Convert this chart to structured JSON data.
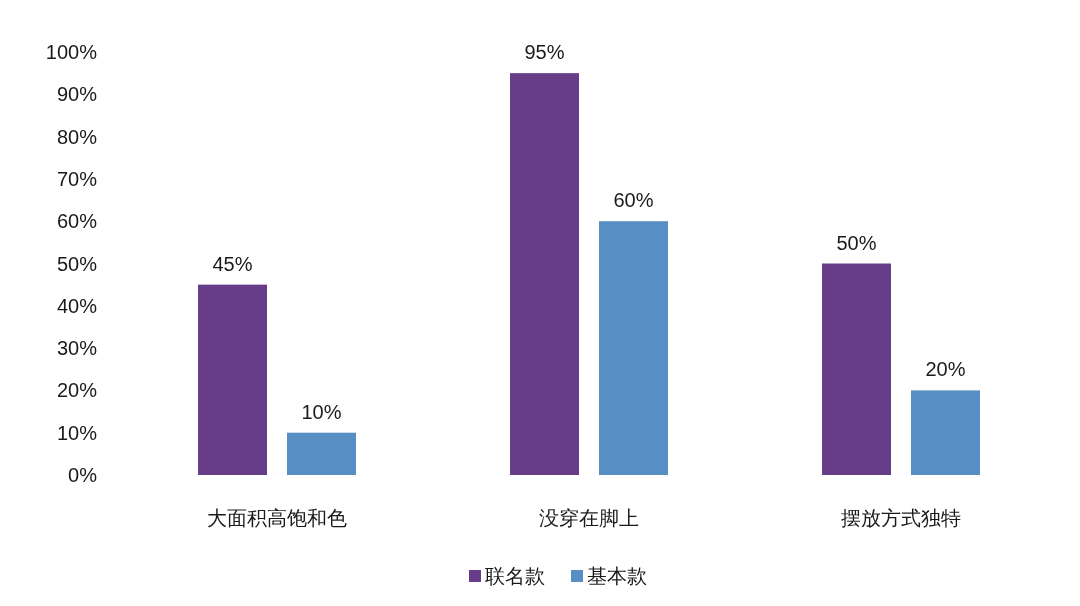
{
  "chart_data": {
    "type": "bar",
    "categories": [
      "大面积高饱和色",
      "没穿在脚上",
      "摆放方式独特"
    ],
    "series": [
      {
        "name": "联名款",
        "color": "#673d89",
        "values": [
          45,
          95,
          50
        ],
        "value_labels": [
          "45%",
          "95%",
          "50%"
        ]
      },
      {
        "name": "基本款",
        "color": "#578fc4",
        "values": [
          10,
          60,
          20
        ],
        "value_labels": [
          "10%",
          "60%",
          "20%"
        ]
      }
    ],
    "ylim": [
      0,
      100
    ],
    "yticks": [
      {
        "value": 0,
        "label": "0%"
      },
      {
        "value": 10,
        "label": "10%"
      },
      {
        "value": 20,
        "label": "20%"
      },
      {
        "value": 30,
        "label": "30%"
      },
      {
        "value": 40,
        "label": "40%"
      },
      {
        "value": 50,
        "label": "50%"
      },
      {
        "value": 60,
        "label": "60%"
      },
      {
        "value": 70,
        "label": "70%"
      },
      {
        "value": 80,
        "label": "80%"
      },
      {
        "value": 90,
        "label": "90%"
      },
      {
        "value": 100,
        "label": "100%"
      }
    ],
    "legend": "bottom"
  }
}
